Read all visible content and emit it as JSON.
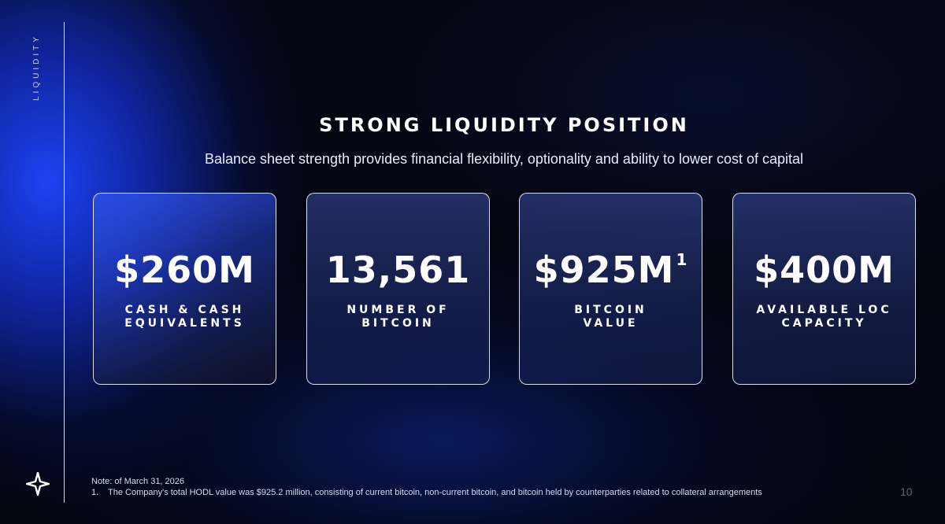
{
  "section_label": "LIQUIDITY",
  "title": "STRONG LIQUIDITY POSITION",
  "subtitle": "Balance sheet strength provides financial flexibility, optionality and ability to lower cost of capital",
  "cards": [
    {
      "value": "$260M",
      "superscript": "",
      "label_line1": "CASH & CASH",
      "label_line2": "EQUIVALENTS"
    },
    {
      "value": "13,561",
      "superscript": "",
      "label_line1": "NUMBER OF",
      "label_line2": "BITCOIN"
    },
    {
      "value": "$925M",
      "superscript": "1",
      "label_line1": "BITCOIN",
      "label_line2": "VALUE"
    },
    {
      "value": "$400M",
      "superscript": "",
      "label_line1": "AVAILABLE LOC",
      "label_line2": "CAPACITY"
    }
  ],
  "footer": {
    "note": "Note: of March 31, 2026",
    "footnote_number": "1.",
    "footnote_text": "The Company's total HODL value was $925.2 million, consisting of current bitcoin, non-current bitcoin, and bitcoin held by counterparties related to collateral arrangements",
    "page_number": "10"
  },
  "colors": {
    "accent_blue": "#1e46ff",
    "background": "#02040d",
    "text": "#ffffff"
  },
  "icons": {
    "logo": "four-point-star-logo-icon"
  }
}
